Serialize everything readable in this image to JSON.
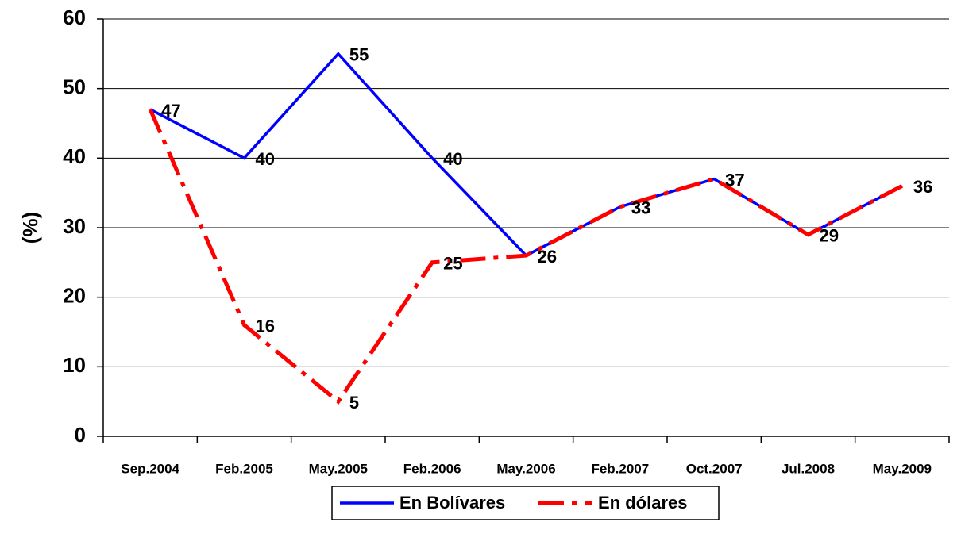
{
  "chart_data": {
    "type": "line",
    "y_label": "(%)",
    "categories": [
      "Sep.2004",
      "Feb.2005",
      "May.2005",
      "Feb.2006",
      "May.2006",
      "Feb.2007",
      "Oct.2007",
      "Jul.2008",
      "May.2009"
    ],
    "series": [
      {
        "name": "En Bolívares",
        "color": "#0000ff",
        "values": [
          47,
          40,
          55,
          40,
          26,
          33,
          37,
          29,
          36
        ]
      },
      {
        "name": "En dólares",
        "color": "#ff0000",
        "values": [
          47,
          16,
          5,
          25,
          26,
          33,
          37,
          29,
          36
        ]
      }
    ],
    "ylim": [
      0,
      60
    ],
    "yticks": [
      0,
      10,
      20,
      30,
      40,
      50,
      60
    ],
    "grid": true,
    "legend": "bottom"
  }
}
